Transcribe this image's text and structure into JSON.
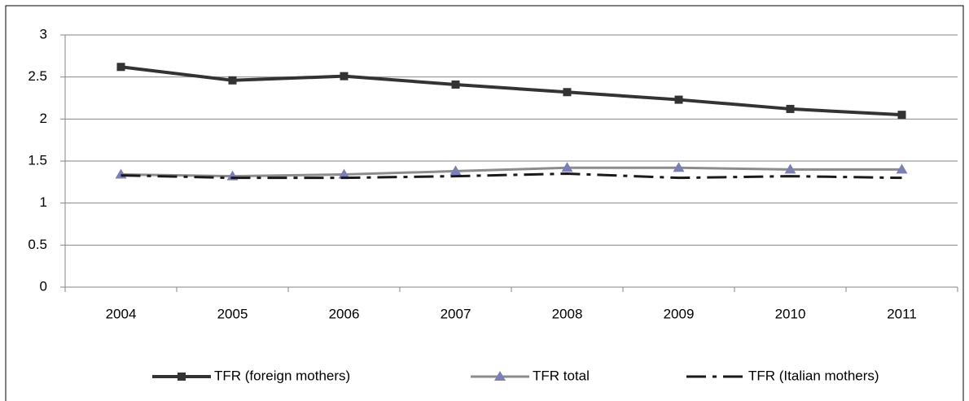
{
  "chart_data": {
    "type": "line",
    "categories": [
      "2004",
      "2005",
      "2006",
      "2007",
      "2008",
      "2009",
      "2010",
      "2011"
    ],
    "series": [
      {
        "name": "TFR (foreign mothers)",
        "color": "#333333",
        "marker": "square",
        "marker_color": "#333333",
        "line_style": "solid",
        "width": 4,
        "values": [
          2.62,
          2.46,
          2.51,
          2.41,
          2.32,
          2.23,
          2.12,
          2.05
        ]
      },
      {
        "name": "TFR total",
        "color": "#8c8c8c",
        "marker": "triangle",
        "marker_color": "#7b7fb5",
        "line_style": "solid",
        "width": 3,
        "values": [
          1.34,
          1.32,
          1.34,
          1.38,
          1.42,
          1.42,
          1.4,
          1.4
        ]
      },
      {
        "name": "TFR (Italian mothers)",
        "color": "#1a1a1a",
        "marker": null,
        "marker_color": null,
        "line_style": "dashdot",
        "width": 3,
        "values": [
          1.33,
          1.3,
          1.3,
          1.32,
          1.35,
          1.3,
          1.32,
          1.3
        ]
      }
    ],
    "ylim": [
      0,
      3
    ],
    "yticks": [
      0,
      0.5,
      1,
      1.5,
      2,
      2.5,
      3
    ],
    "grid": true,
    "legend": "bottom"
  }
}
